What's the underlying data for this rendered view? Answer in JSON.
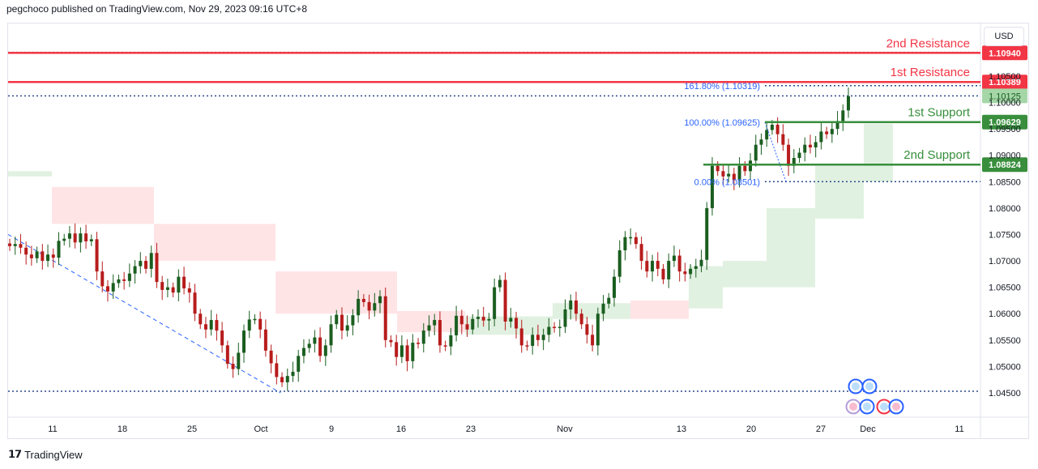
{
  "header": {
    "text": "pegchoco published on TradingView.com, Nov 29, 2023 09:16 UTC+8"
  },
  "brand": {
    "name": "TradingView"
  },
  "currency": "USD",
  "colors": {
    "resistance": "#f23645",
    "support": "#388e3c",
    "bull": "#26a69a",
    "bullCandle": "#1b5e20",
    "bearCandle": "#b71c1c",
    "cloudBull": "#c8e6c9",
    "cloudBear": "#ffcdd2",
    "fib": "#2962ff",
    "trend": "#2962ff"
  },
  "chart_data": {
    "type": "candlestick",
    "ylim": [
      1.044,
      1.1125
    ],
    "y_ticks": [
      "1.04500",
      "1.05000",
      "1.05500",
      "1.06000",
      "1.06500",
      "1.07000",
      "1.07500",
      "1.08000",
      "1.08500",
      "1.09000",
      "1.09500",
      "1.10000",
      "1.10500"
    ],
    "x_ticks": [
      "11",
      "18",
      "25",
      "Oct",
      "9",
      "16",
      "23",
      "Nov",
      "13",
      "20",
      "27",
      "Dec",
      "11"
    ],
    "levels": [
      {
        "name": "2nd Resistance",
        "value": 1.1094,
        "label": "1.10940",
        "kind": "resistance"
      },
      {
        "name": "1st Resistance",
        "value": 1.10389,
        "label": "1.10389",
        "kind": "resistance"
      },
      {
        "name": "1st Support",
        "value": 1.09629,
        "label": "1.09629",
        "kind": "support"
      },
      {
        "name": "2nd Support",
        "value": 1.08824,
        "label": "1.08824",
        "kind": "support"
      }
    ],
    "last_price": {
      "value": 1.10125,
      "label": "1.10125"
    },
    "fib_labels": [
      {
        "text": "161.80% (1.10319)",
        "value": 1.10319
      },
      {
        "text": "100.00% (1.09625)",
        "value": 1.09625
      },
      {
        "text": "0.00% (1.08501)",
        "value": 1.08501
      }
    ],
    "dotted_lines": [
      1.1095,
      1.10319,
      1.10125,
      1.08501,
      1.0453
    ],
    "trendline": [
      {
        "x": 0.0,
        "y": 1.075
      },
      {
        "x": 0.2802,
        "y": 1.045
      }
    ],
    "close": [
      1.0728,
      1.0732,
      1.0725,
      1.0712,
      1.0705,
      1.0718,
      1.07,
      1.0712,
      1.0706,
      1.0738,
      1.0742,
      1.0752,
      1.0735,
      1.0752,
      1.0737,
      1.0741,
      1.068,
      1.0652,
      1.0642,
      1.0658,
      1.0665,
      1.0662,
      1.0676,
      1.069,
      1.07,
      1.0685,
      1.0715,
      1.066,
      1.0645,
      1.065,
      1.064,
      1.067,
      1.0648,
      1.064,
      1.06,
      1.058,
      1.057,
      1.0588,
      1.0568,
      1.054,
      1.0505,
      1.0495,
      1.0526,
      1.0568,
      1.0589,
      1.059,
      1.057,
      1.053,
      1.0506,
      1.048,
      1.047,
      1.0482,
      1.049,
      1.052,
      1.0535,
      1.0543,
      1.0555,
      1.052,
      1.054,
      1.058,
      1.0598,
      1.0568,
      1.0578,
      1.0597,
      1.0628,
      1.0622,
      1.0606,
      1.062,
      1.0633,
      1.055,
      1.0546,
      1.0518,
      1.054,
      1.051,
      1.0545,
      1.0543,
      1.0568,
      1.0578,
      1.0588,
      1.054,
      1.0538,
      1.0559,
      1.0596,
      1.058,
      1.057,
      1.059,
      1.0594,
      1.0587,
      1.059,
      1.065,
      1.0664,
      1.0585,
      1.0592,
      1.0572,
      1.054,
      1.0539,
      1.056,
      1.055,
      1.056,
      1.0575,
      1.0573,
      1.0575,
      1.0608,
      1.0625,
      1.06,
      1.058,
      1.056,
      1.054,
      1.06,
      1.0619,
      1.063,
      1.067,
      1.072,
      1.0745,
      1.0745,
      1.0732,
      1.07,
      1.068,
      1.07,
      1.0685,
      1.0665,
      1.07,
      1.071,
      1.068,
      1.0675,
      1.0685,
      1.069,
      1.0702,
      1.08,
      1.088,
      1.087,
      1.086,
      1.0865,
      1.0853,
      1.088,
      1.087,
      1.089,
      1.092,
      1.093,
      1.0948,
      1.0958,
      1.094,
      1.092,
      1.088,
      1.0895,
      1.0905,
      1.092,
      1.0915,
      1.0925,
      1.0945,
      1.094,
      1.095,
      1.0965,
      1.0985,
      1.1012
    ],
    "cloud": [
      {
        "x0": 0.0,
        "x1": 0.045,
        "top": 1.087,
        "bot": 1.086,
        "kind": "bull"
      },
      {
        "x0": 0.045,
        "x1": 0.15,
        "top": 1.084,
        "bot": 1.077,
        "kind": "bear"
      },
      {
        "x0": 0.15,
        "x1": 0.275,
        "top": 1.077,
        "bot": 1.07,
        "kind": "bear"
      },
      {
        "x0": 0.275,
        "x1": 0.4,
        "top": 1.068,
        "bot": 1.06,
        "kind": "bear"
      },
      {
        "x0": 0.4,
        "x1": 0.47,
        "top": 1.0605,
        "bot": 1.0565,
        "kind": "bear"
      },
      {
        "x0": 0.47,
        "x1": 0.56,
        "top": 1.0595,
        "bot": 1.056,
        "kind": "bull"
      },
      {
        "x0": 0.56,
        "x1": 0.64,
        "top": 1.062,
        "bot": 1.059,
        "kind": "bull"
      },
      {
        "x0": 0.64,
        "x1": 0.7,
        "top": 1.0625,
        "bot": 1.059,
        "kind": "bear"
      },
      {
        "x0": 0.7,
        "x1": 0.735,
        "top": 1.069,
        "bot": 1.061,
        "kind": "bull"
      },
      {
        "x0": 0.735,
        "x1": 0.78,
        "top": 1.07,
        "bot": 1.065,
        "kind": "bull"
      },
      {
        "x0": 0.78,
        "x1": 0.83,
        "top": 1.08,
        "bot": 1.065,
        "kind": "bull"
      },
      {
        "x0": 0.83,
        "x1": 0.88,
        "top": 1.088,
        "bot": 1.078,
        "kind": "bull"
      },
      {
        "x0": 0.88,
        "x1": 0.91,
        "top": 1.096,
        "bot": 1.085,
        "kind": "bull"
      }
    ]
  }
}
